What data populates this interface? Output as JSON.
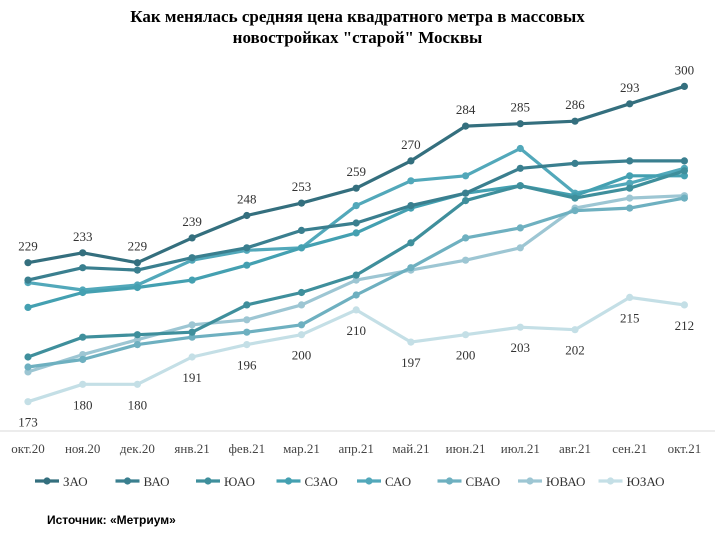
{
  "title_lines": [
    "Как менялась средняя цена квадратного  метра  в массовых",
    "новостройках  \"старой\"  Москвы"
  ],
  "source": "Источник: «Метриум»",
  "chart_data": {
    "type": "line",
    "title": "Как менялась средняя цена квадратного  метра  в массовых новостройках  \"старой\"  Москвы",
    "categories": [
      "окт.20",
      "ноя.20",
      "дек.20",
      "янв.21",
      "фев.21",
      "мар.21",
      "апр.21",
      "май.21",
      "июн.21",
      "июл.21",
      "авг.21",
      "сен.21",
      "окт.21"
    ],
    "ylim": [
      160,
      305
    ],
    "grid": false,
    "legend": "bottom",
    "series": [
      {
        "name": "ЗАО",
        "color": "#346f7e",
        "values": [
          229,
          233,
          229,
          239,
          248,
          253,
          259,
          270,
          284,
          285,
          286,
          293,
          300
        ],
        "labeled": true
      },
      {
        "name": "ВАО",
        "color": "#3a7f8f",
        "values": [
          222,
          227,
          226,
          231,
          235,
          242,
          245,
          252,
          257,
          267,
          269,
          270,
          270
        ],
        "labeled": false
      },
      {
        "name": "ЮАО",
        "color": "#3f8f9c",
        "values": [
          191,
          199,
          200,
          201,
          212,
          217,
          224,
          237,
          254,
          260,
          255,
          259,
          266
        ],
        "labeled": false
      },
      {
        "name": "СЗАО",
        "color": "#44a0b1",
        "values": [
          211,
          217,
          219,
          222,
          228,
          235,
          241,
          251,
          257,
          260,
          256,
          264,
          264
        ],
        "labeled": false
      },
      {
        "name": "САО",
        "color": "#52a8ba",
        "values": [
          221,
          218,
          220,
          230,
          234,
          235,
          252,
          262,
          264,
          275,
          257,
          261,
          267
        ],
        "labeled": false
      },
      {
        "name": "СВАО",
        "color": "#6eb0c0",
        "values": [
          187,
          190,
          196,
          199,
          201,
          204,
          216,
          227,
          239,
          243,
          250,
          251,
          255
        ],
        "labeled": false
      },
      {
        "name": "ЮВАО",
        "color": "#9dc6d3",
        "values": [
          185,
          192,
          198,
          204,
          206,
          212,
          222,
          226,
          230,
          235,
          251,
          255,
          256
        ],
        "labeled": false
      },
      {
        "name": "ЮЗАО",
        "color": "#c4dfe6",
        "values": [
          173,
          180,
          180,
          191,
          196,
          200,
          210,
          197,
          200,
          203,
          202,
          215,
          212
        ],
        "labeled": true
      }
    ]
  }
}
